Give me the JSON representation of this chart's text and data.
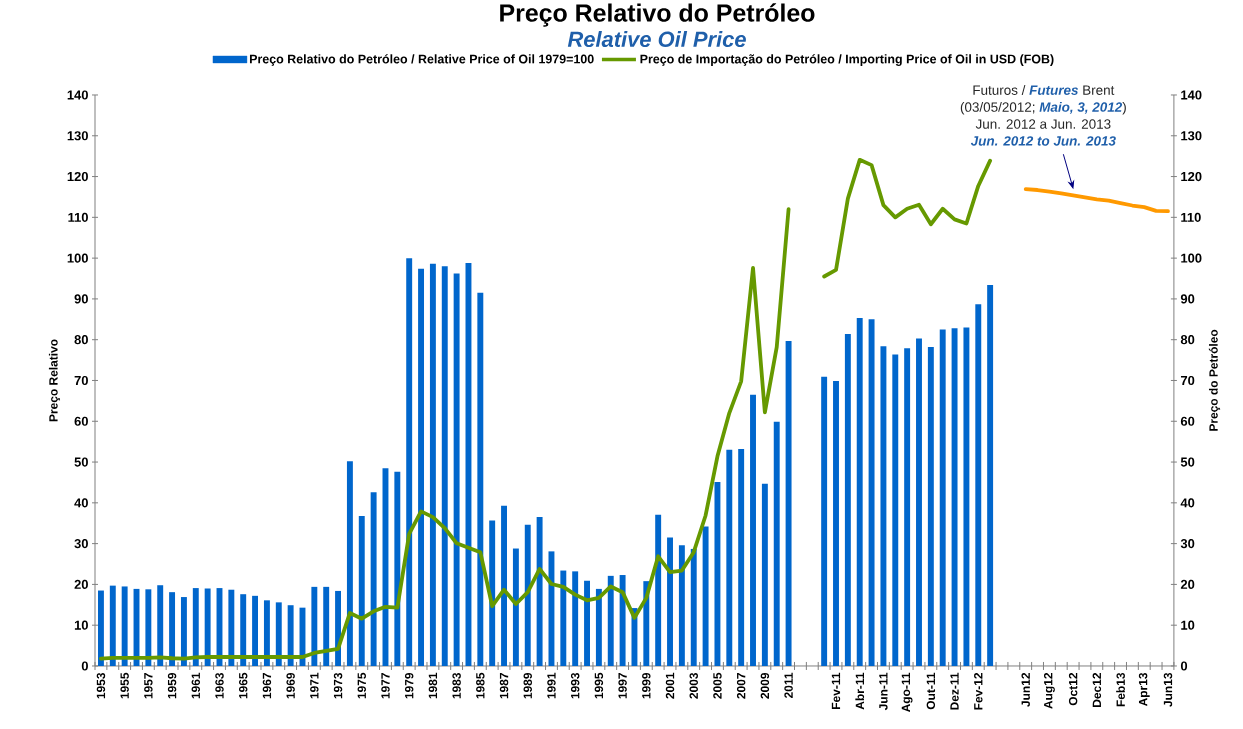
{
  "chart_data": {
    "type": "bar",
    "title": "Preço Relativo do Petróleo",
    "subtitle": "Relative Oil Price",
    "ylabel": "Preço Relativo",
    "y2label": "Preço do Petróleo",
    "categories": [
      "1953",
      null,
      "1955",
      null,
      "1957",
      null,
      "1959",
      null,
      "1961",
      null,
      "1963",
      null,
      "1965",
      null,
      "1967",
      null,
      "1969",
      null,
      "1971",
      null,
      "1973",
      null,
      "1975",
      null,
      "1977",
      null,
      "1979",
      null,
      "1981",
      null,
      "1983",
      null,
      "1985",
      null,
      "1987",
      null,
      "1989",
      null,
      "1991",
      null,
      "1993",
      null,
      "1995",
      null,
      "1997",
      null,
      "1999",
      null,
      "2001",
      null,
      "2003",
      null,
      "2005",
      null,
      "2007",
      null,
      "2009",
      null,
      "2011",
      null,
      null,
      null,
      "Fev-11",
      null,
      "Abr-11",
      null,
      "Jun-11",
      null,
      "Ago-11",
      null,
      "Out-11",
      null,
      "Dez-11",
      null,
      "Fev-12",
      null,
      null,
      null,
      "Jun12",
      null,
      "Aug12",
      null,
      "Oct12",
      null,
      "Dec12",
      null,
      "Feb13",
      null,
      "Apr13",
      null,
      "Jun13"
    ],
    "series": [
      {
        "name": "Preço Relativo do Petróleo / Relative Price of Oil 1979=100",
        "color": "#0066cc",
        "values": [
          18.5,
          19.7,
          19.5,
          18.9,
          18.8,
          19.8,
          18.1,
          16.9,
          19.1,
          19.0,
          19.1,
          18.7,
          17.6,
          17.2,
          16.1,
          15.6,
          14.9,
          14.3,
          19.4,
          19.4,
          18.4,
          50.2,
          36.8,
          42.6,
          48.5,
          47.6,
          100,
          97.4,
          98.6,
          98.0,
          96.2,
          98.8,
          91.5,
          35.7,
          39.3,
          28.8,
          34.6,
          36.5,
          28.1,
          23.4,
          23.2,
          20.9,
          18.9,
          22.1,
          22.3,
          14.2,
          20.8,
          37.1,
          31.5,
          29.6,
          28.7,
          34.2,
          45.1,
          53.0,
          53.2,
          66.5,
          44.7,
          59.9,
          79.7,
          null,
          null,
          70.9,
          69.9,
          81.4,
          85.3,
          85.0,
          78.4,
          76.4,
          77.9,
          80.3,
          78.2,
          82.5,
          82.8,
          83.0,
          88.7,
          93.4,
          null,
          null,
          null,
          null,
          null,
          null,
          null,
          null,
          null,
          null,
          null,
          null,
          null,
          null,
          null
        ]
      },
      {
        "name": "Preço de Importação do Petróleo / Importing Price of Oil in USD (FOB)",
        "type": "line",
        "axis": "y2",
        "color": "#669900",
        "values": [
          1.8,
          2.0,
          2.0,
          2.0,
          2.0,
          2.1,
          1.9,
          1.8,
          2.1,
          2.2,
          2.2,
          2.2,
          2.2,
          2.2,
          2.2,
          2.2,
          2.2,
          2.2,
          3.2,
          3.7,
          4.2,
          13.0,
          11.6,
          13.4,
          14.5,
          14.3,
          32.4,
          37.9,
          36.5,
          33.8,
          30.1,
          29.0,
          27.9,
          14.7,
          18.7,
          15.2,
          18.1,
          23.8,
          20.1,
          19.4,
          17.5,
          16.1,
          16.7,
          19.5,
          18.1,
          11.8,
          16.7,
          26.9,
          23.0,
          23.4,
          27.9,
          36.9,
          51.4,
          62.0,
          69.8,
          97.6,
          62.2,
          78.2,
          112.0,
          null,
          null,
          95.5,
          97.1,
          114.6,
          124.1,
          122.8,
          113.0,
          110.0,
          112.1,
          113.1,
          108.3,
          112.1,
          109.5,
          108.5,
          117.7,
          123.9,
          null,
          null,
          null,
          null,
          null,
          null,
          null,
          null,
          null,
          null,
          null,
          null,
          null,
          null,
          null
        ]
      },
      {
        "type": "line",
        "axis": "y2",
        "color": "#ff9900",
        "values": [
          null,
          null,
          null,
          null,
          null,
          null,
          null,
          null,
          null,
          null,
          null,
          null,
          null,
          null,
          null,
          null,
          null,
          null,
          null,
          null,
          null,
          null,
          null,
          null,
          null,
          null,
          null,
          null,
          null,
          null,
          null,
          null,
          null,
          null,
          null,
          null,
          null,
          null,
          null,
          null,
          null,
          null,
          null,
          null,
          null,
          null,
          null,
          null,
          null,
          null,
          null,
          null,
          null,
          null,
          null,
          null,
          null,
          null,
          null,
          null,
          null,
          null,
          null,
          null,
          null,
          null,
          null,
          null,
          null,
          null,
          null,
          null,
          null,
          null,
          null,
          null,
          null,
          null,
          116.9,
          116.7,
          116.3,
          115.9,
          115.4,
          114.9,
          114.4,
          114.1,
          113.5,
          112.9,
          112.5,
          111.6,
          111.5
        ]
      }
    ],
    "ylim": [
      0,
      140
    ],
    "yticks": [
      0,
      10,
      20,
      30,
      40,
      50,
      60,
      70,
      80,
      90,
      100,
      110,
      120,
      130,
      140
    ],
    "y2lim": [
      0,
      140
    ],
    "y2ticks": [
      0,
      10,
      20,
      30,
      40,
      50,
      60,
      70,
      80,
      90,
      100,
      110,
      120,
      130,
      140
    ],
    "legend": "top",
    "annotations": [
      "Futuros / *Futures* Brent",
      "(03/05/2012; *Maio, 3, 2012*)",
      "Jun. 2012 a Jun. 2013",
      "Jun. 2012 to Jun. 2013"
    ]
  }
}
